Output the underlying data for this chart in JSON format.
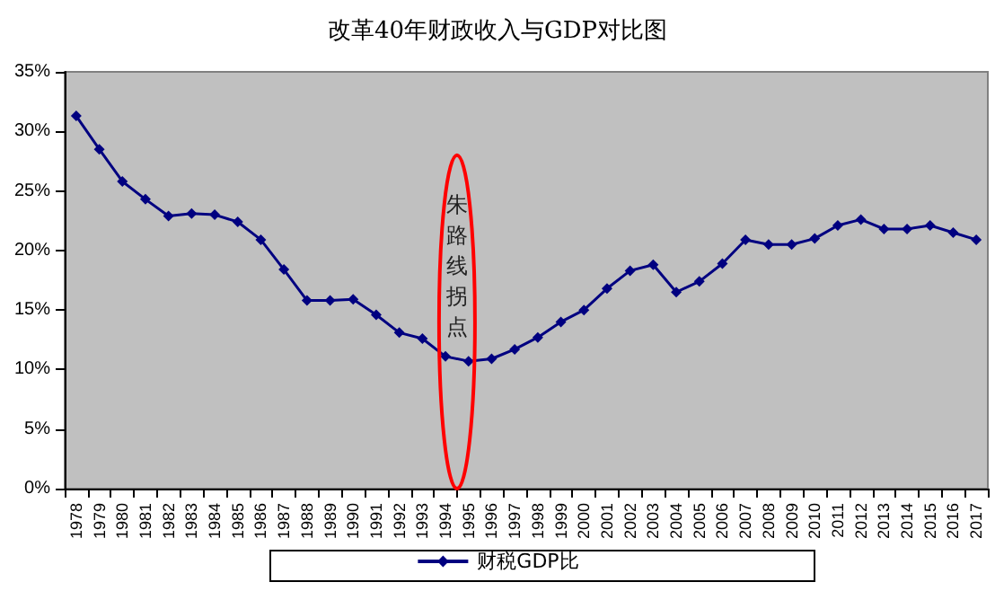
{
  "chart_data": {
    "type": "line",
    "title": "改革40年财政收入与GDP对比图",
    "categories": [
      "1978",
      "1979",
      "1980",
      "1981",
      "1982",
      "1983",
      "1984",
      "1985",
      "1986",
      "1987",
      "1988",
      "1989",
      "1990",
      "1991",
      "1992",
      "1993",
      "1994",
      "1995",
      "1996",
      "1997",
      "1998",
      "1999",
      "2000",
      "2001",
      "2002",
      "2003",
      "2004",
      "2005",
      "2006",
      "2007",
      "2008",
      "2009",
      "2010",
      "2011",
      "2012",
      "2013",
      "2014",
      "2015",
      "2016",
      "2017"
    ],
    "series": [
      {
        "name": "财税GDP比",
        "color": "#000080",
        "values": [
          31.3,
          28.5,
          25.8,
          24.3,
          22.9,
          23.1,
          23.0,
          22.4,
          20.9,
          18.4,
          15.8,
          15.8,
          15.9,
          14.6,
          13.1,
          12.6,
          11.1,
          10.7,
          10.9,
          11.7,
          12.7,
          14.0,
          15.0,
          16.8,
          18.3,
          18.8,
          16.5,
          17.4,
          18.9,
          20.9,
          20.5,
          20.5,
          21.0,
          22.1,
          22.6,
          21.8,
          21.8,
          22.1,
          21.5,
          20.9
        ]
      }
    ],
    "ylim": [
      0,
      35
    ],
    "yticks": [
      {
        "value": 0,
        "label": "0%"
      },
      {
        "value": 5,
        "label": "5%"
      },
      {
        "value": 10,
        "label": "10%"
      },
      {
        "value": 15,
        "label": "15%"
      },
      {
        "value": 20,
        "label": "20%"
      },
      {
        "value": 25,
        "label": "25%"
      },
      {
        "value": 30,
        "label": "30%"
      },
      {
        "value": 35,
        "label": "35%"
      }
    ],
    "annotations": [
      "朱路线拐点"
    ],
    "grid": false,
    "legend": "bottom",
    "marker": "diamond",
    "line_style": "solid"
  }
}
